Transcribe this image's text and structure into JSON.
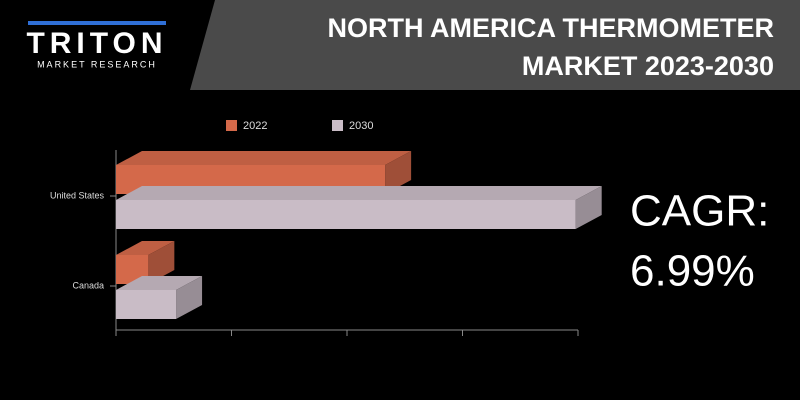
{
  "header": {
    "logo": "TRITON",
    "logo_sub": "MARKET RESEARCH",
    "title": [
      "NORTH AMERICA THERMOMETER",
      "MARKET 2023-2030"
    ]
  },
  "callout": {
    "label": "CAGR:",
    "value": "6.99%"
  },
  "chart_data": {
    "type": "bar",
    "orientation": "horizontal",
    "three_d": true,
    "categories": [
      "United States",
      "Canada"
    ],
    "series": [
      {
        "name": "2022",
        "color": "#d4694a",
        "values": [
          2.33,
          0.28
        ]
      },
      {
        "name": "2030",
        "color": "#c9bcc6",
        "values": [
          3.98,
          0.52
        ]
      }
    ],
    "xlim": [
      0,
      4
    ],
    "xticks": [
      0,
      1,
      2,
      3,
      4
    ],
    "legend": "top"
  }
}
